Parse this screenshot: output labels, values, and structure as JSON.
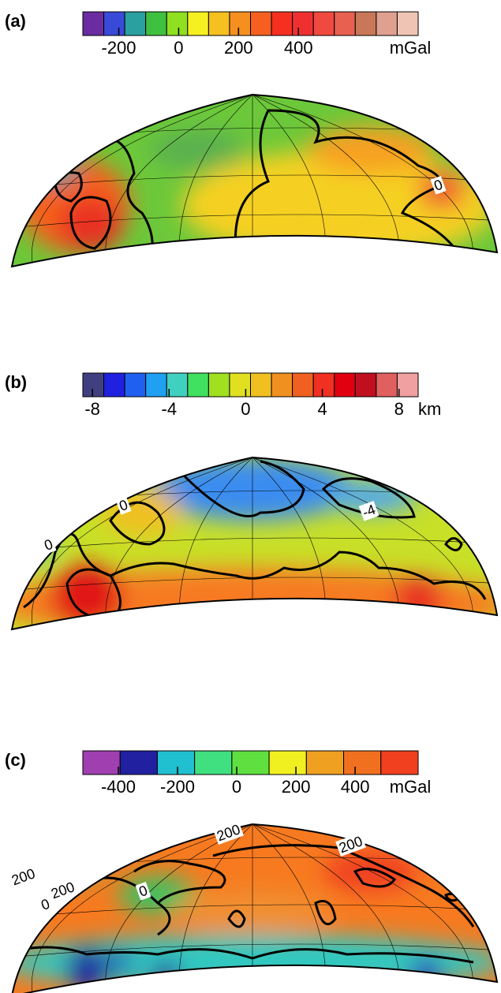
{
  "panels": [
    {
      "label": "(a)",
      "colorbar": {
        "unit": "mGal",
        "lim": [
          -320,
          800
        ],
        "ticks": [
          -200,
          0,
          200,
          400
        ],
        "colors": [
          "#6a2ca0",
          "#3a4ad8",
          "#2aa0a0",
          "#40c040",
          "#8fe020",
          "#f5f020",
          "#f5c020",
          "#f59020",
          "#f56020",
          "#f53020",
          "#f03030",
          "#f04a40",
          "#e86050",
          "#c87858",
          "#e0a090",
          "#f0c4b4"
        ]
      },
      "contour_labels": [
        "0"
      ]
    },
    {
      "label": "(b)",
      "colorbar": {
        "unit": "km",
        "lim": [
          -8.5,
          9
        ],
        "ticks": [
          -8,
          -4,
          0,
          4,
          8
        ],
        "colors": [
          "#404080",
          "#2020e0",
          "#2060f0",
          "#20a0f0",
          "#40d0c0",
          "#40e060",
          "#a0e020",
          "#e0e020",
          "#f0c020",
          "#f09020",
          "#f06020",
          "#f03020",
          "#e00010",
          "#c01020",
          "#e06060",
          "#f0a0a0"
        ]
      },
      "contour_labels": [
        "0",
        "0",
        "-4"
      ]
    },
    {
      "label": "(c)",
      "colorbar": {
        "unit": "mGal",
        "lim": [
          -520,
          613
        ],
        "ticks": [
          -400,
          -200,
          0,
          200,
          400
        ],
        "colors": [
          "#a040b0",
          "#2020a0",
          "#20c0d0",
          "#40e080",
          "#60e040",
          "#f0f020",
          "#f0a020",
          "#f07020",
          "#f04020"
        ]
      },
      "contour_labels": [
        "200",
        "200",
        "0",
        "200",
        "200",
        "0"
      ]
    }
  ]
}
